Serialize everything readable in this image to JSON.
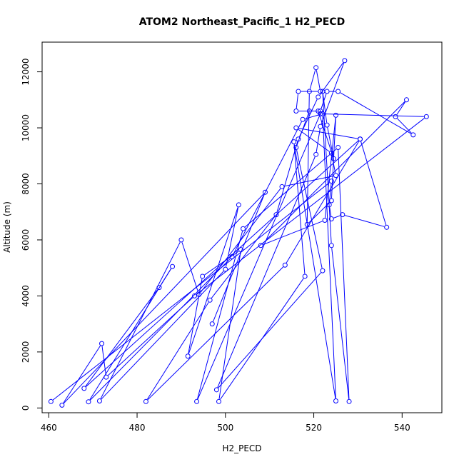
{
  "chart_data": {
    "type": "line",
    "title": "ATOM2 Northeast_Pacific_1 H2_PECD",
    "xlabel": "H2_PECD",
    "ylabel": "Altitude (m)",
    "xlim": [
      458.5,
      549.0
    ],
    "ylim": [
      -170,
      13060
    ],
    "x_ticks": [
      460,
      480,
      500,
      520,
      540
    ],
    "y_ticks": [
      0,
      2000,
      4000,
      6000,
      8000,
      10000,
      12000
    ],
    "grid": false,
    "legend": "none",
    "series": [
      {
        "color": "#0000ff",
        "marker": "open-circle",
        "points": [
          [
            460.5,
            230
          ],
          [
            524.0,
            8100
          ],
          [
            523.5,
            7250
          ],
          [
            524.0,
            6750
          ],
          [
            526.5,
            6900
          ],
          [
            536.5,
            6450
          ],
          [
            530.5,
            9600
          ],
          [
            516.0,
            10000
          ],
          [
            524.0,
            9100
          ],
          [
            525.0,
            8300
          ],
          [
            512.8,
            7900
          ],
          [
            494.0,
            4050
          ],
          [
            490.0,
            6000
          ],
          [
            471.5,
            250
          ],
          [
            500.0,
            4950
          ],
          [
            503.0,
            7250
          ],
          [
            491.5,
            1850
          ],
          [
            494.8,
            4700
          ],
          [
            503.5,
            5650
          ],
          [
            498.5,
            230
          ],
          [
            518.0,
            4700
          ],
          [
            515.5,
            9500
          ],
          [
            525.0,
            250
          ],
          [
            522.0,
            10500
          ],
          [
            517.5,
            10300
          ],
          [
            501.5,
            5400
          ],
          [
            469.0,
            220
          ],
          [
            488.0,
            5050
          ],
          [
            485.0,
            4300
          ],
          [
            468.0,
            700
          ],
          [
            530.5,
            9600
          ],
          [
            513.5,
            5100
          ],
          [
            482.0,
            230
          ],
          [
            496.5,
            3850
          ],
          [
            511.5,
            6900
          ],
          [
            516.5,
            9600
          ],
          [
            521.0,
            11100
          ],
          [
            527.0,
            12400
          ],
          [
            521.5,
            10050
          ],
          [
            520.5,
            9050
          ],
          [
            498.0,
            650
          ],
          [
            522.0,
            4900
          ],
          [
            516.0,
            9300
          ],
          [
            519.0,
            10600
          ],
          [
            521.5,
            10600
          ],
          [
            523.0,
            11300
          ],
          [
            525.5,
            11300
          ],
          [
            542.5,
            9750
          ],
          [
            538.5,
            10400
          ],
          [
            541.0,
            11000
          ],
          [
            508.0,
            5800
          ],
          [
            522.5,
            6700
          ],
          [
            525.0,
            10450
          ],
          [
            524.0,
            7400
          ],
          [
            518.5,
            6550
          ],
          [
            519.0,
            11300
          ],
          [
            520.5,
            12150
          ],
          [
            521.5,
            11300
          ],
          [
            516.5,
            11300
          ],
          [
            516.0,
            10600
          ],
          [
            521.0,
            10600
          ],
          [
            524.5,
            8900
          ],
          [
            523.0,
            10100
          ],
          [
            522.0,
            11300
          ],
          [
            524.0,
            5800
          ],
          [
            528.0,
            230
          ],
          [
            525.5,
            9300
          ],
          [
            504.0,
            6400
          ],
          [
            493.5,
            230
          ],
          [
            521.5,
            10500
          ],
          [
            545.5,
            10400
          ],
          [
            493.0,
            4000
          ],
          [
            473.0,
            1100
          ],
          [
            472.0,
            2300
          ],
          [
            463.0,
            100
          ],
          [
            509.0,
            7700
          ],
          [
            497.0,
            3000
          ]
        ]
      }
    ]
  }
}
